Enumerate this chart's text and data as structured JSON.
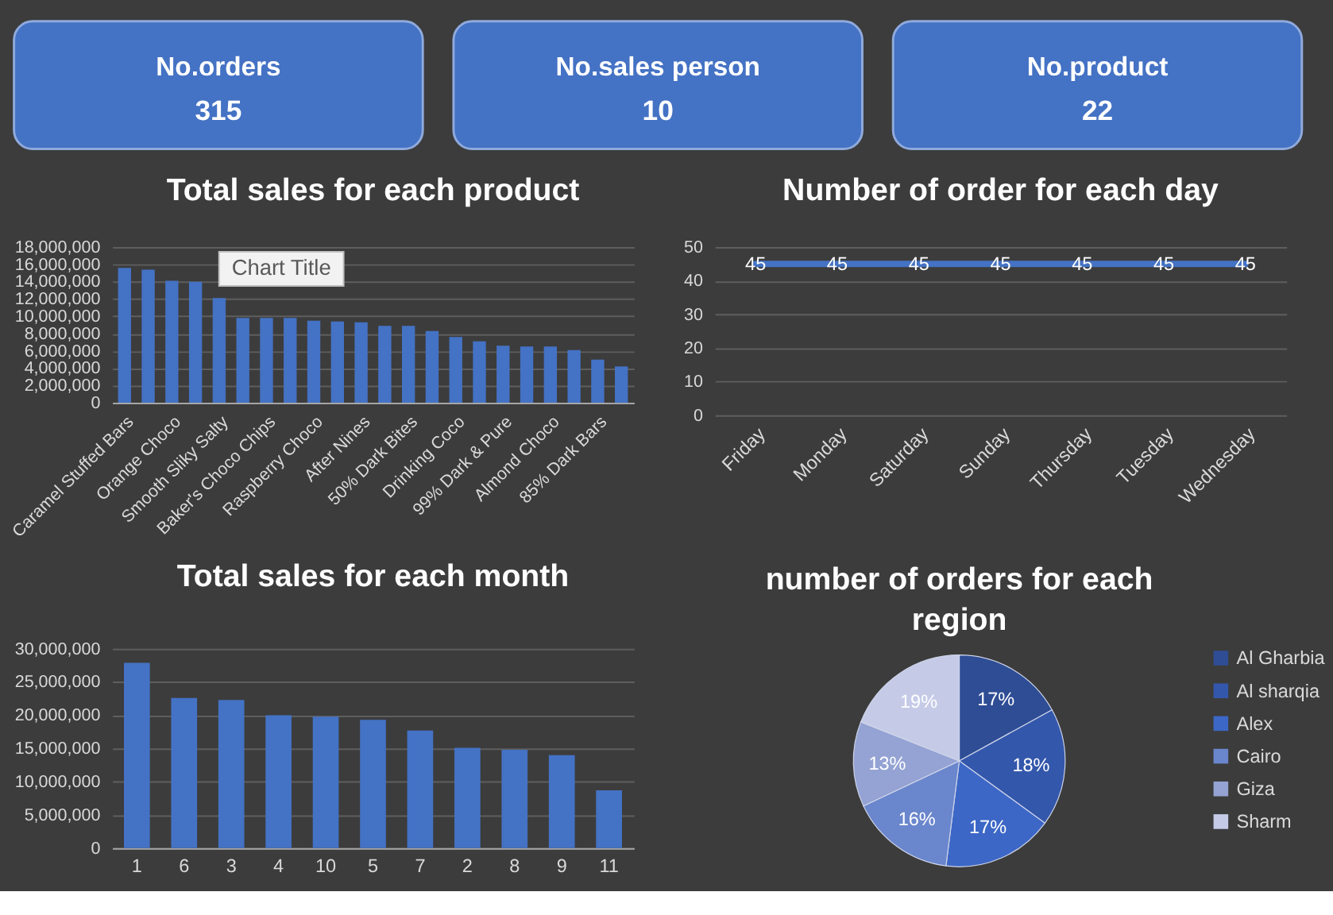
{
  "chart_data": [
    {
      "type": "other",
      "categories": [
        "No.orders",
        "No.sales person",
        "No.product"
      ],
      "values": [
        315,
        10,
        22
      ],
      "color": "#4472c4",
      "data_labels": true
    },
    {
      "type": "bar",
      "title": "Total sales for each product",
      "categories": [
        "Caramel Stuffed Bars",
        null,
        "Orange Choco",
        null,
        "Smooth Sliky Salty",
        null,
        "Baker's Choco Chips",
        null,
        "Raspberry Choco",
        null,
        "After Nines",
        null,
        "50% Dark Bites",
        null,
        "Drinking Coco",
        null,
        "99% Dark & Pure",
        null,
        "Almond Choco",
        null,
        "85% Dark Bars",
        null
      ],
      "values": [
        15600000,
        15400000,
        14100000,
        14000000,
        12100000,
        9800000,
        9800000,
        9800000,
        9500000,
        9400000,
        9300000,
        8900000,
        8900000,
        8300000,
        7600000,
        7100000,
        6600000,
        6500000,
        6500000,
        6100000,
        5000000,
        4200000
      ],
      "color": "#4472c4",
      "ylim": [
        0,
        18000000
      ],
      "yticks": [
        0,
        {
          "value": 2000000,
          "label": "2,000,000"
        },
        {
          "value": 4000000,
          "label": "4,000,000"
        },
        {
          "value": 6000000,
          "label": "6,000,000"
        },
        {
          "value": 8000000,
          "label": "8,000,000"
        },
        {
          "value": 10000000,
          "label": "10,000,000"
        },
        {
          "value": 12000000,
          "label": "12,000,000"
        },
        {
          "value": 14000000,
          "label": "14,000,000"
        },
        {
          "value": 16000000,
          "label": "16,000,000"
        },
        {
          "value": 18000000,
          "label": "18,000,000"
        }
      ],
      "grid": "y",
      "annotations": [
        "Chart Title"
      ]
    },
    {
      "type": "line",
      "title": "Number of order for each day",
      "categories": [
        "Friday",
        "Monday",
        "Saturday",
        "Sunday",
        "Thursday",
        "Tuesday",
        "Wednesday"
      ],
      "values": [
        45,
        45,
        45,
        45,
        45,
        45,
        45
      ],
      "color": "#4472c4",
      "ylim": [
        0,
        50
      ],
      "yticks": [
        0,
        10,
        20,
        30,
        40,
        50
      ],
      "grid": "y",
      "data_labels": true
    },
    {
      "type": "bar",
      "title": "Total sales for each month",
      "categories": [
        "1",
        "6",
        "3",
        "4",
        "10",
        "5",
        "7",
        "2",
        "8",
        "9",
        "11"
      ],
      "values": [
        27900000,
        22600000,
        22300000,
        20000000,
        19800000,
        19300000,
        17700000,
        15100000,
        14800000,
        14000000,
        8700000
      ],
      "color": "#4472c4",
      "ylim": [
        0,
        30000000
      ],
      "yticks": [
        0,
        {
          "value": 5000000,
          "label": "5,000,000"
        },
        {
          "value": 10000000,
          "label": "10,000,000"
        },
        {
          "value": 15000000,
          "label": "15,000,000"
        },
        {
          "value": 20000000,
          "label": "20,000,000"
        },
        {
          "value": 25000000,
          "label": "25,000,000"
        },
        {
          "value": 30000000,
          "label": "30,000,000"
        }
      ],
      "grid": "y"
    },
    {
      "type": "pie",
      "title": "number of orders for each region",
      "categories": [
        "Al Gharbia",
        "Al sharqia",
        "Alex",
        "Cairo",
        "Giza",
        "Sharm"
      ],
      "values": [
        17,
        18,
        17,
        16,
        13,
        19
      ],
      "colors": [
        "#2e4d95",
        "#3357ab",
        "#3c67c6",
        "#6a86cc",
        "#94a3d3",
        "#c5cbe7"
      ],
      "value_labels": [
        "17%",
        "18%",
        "17%",
        "16%",
        "13%",
        "19%"
      ],
      "legend": "right"
    }
  ]
}
